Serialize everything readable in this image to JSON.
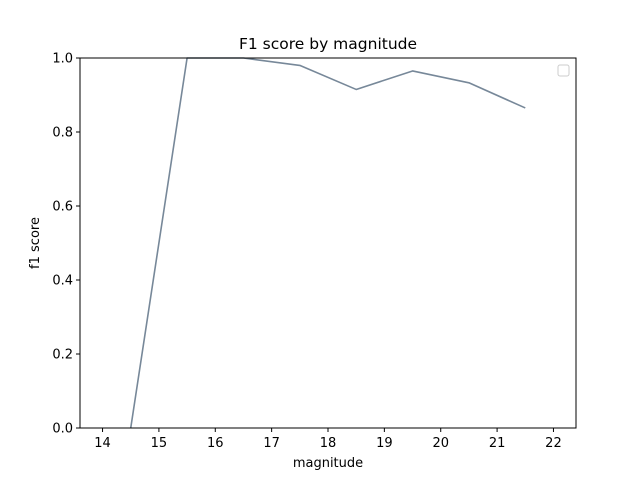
{
  "chart_data": {
    "type": "line",
    "title": "F1 score by magnitude",
    "xlabel": "magnitude",
    "ylabel": "f1 score",
    "xlim": [
      13.6,
      22.4
    ],
    "ylim": [
      0.0,
      1.0
    ],
    "xticks": [
      14,
      15,
      16,
      17,
      18,
      19,
      20,
      21,
      22
    ],
    "yticks": [
      0.0,
      0.2,
      0.4,
      0.6,
      0.8,
      1.0
    ],
    "xtick_labels": [
      "14",
      "15",
      "16",
      "17",
      "18",
      "19",
      "20",
      "21",
      "22"
    ],
    "ytick_labels": [
      "0.0",
      "0.2",
      "0.4",
      "0.6",
      "0.8",
      "1.0"
    ],
    "grid": false,
    "legend": "upper-right (empty)",
    "series": [
      {
        "color": "#778899",
        "x": [
          14.5,
          15.5,
          16.5,
          17.5,
          18.5,
          19.5,
          20.5,
          21.5
        ],
        "y": [
          0.0,
          1.0,
          1.0,
          0.98,
          0.915,
          0.965,
          0.933,
          0.865
        ]
      }
    ]
  }
}
